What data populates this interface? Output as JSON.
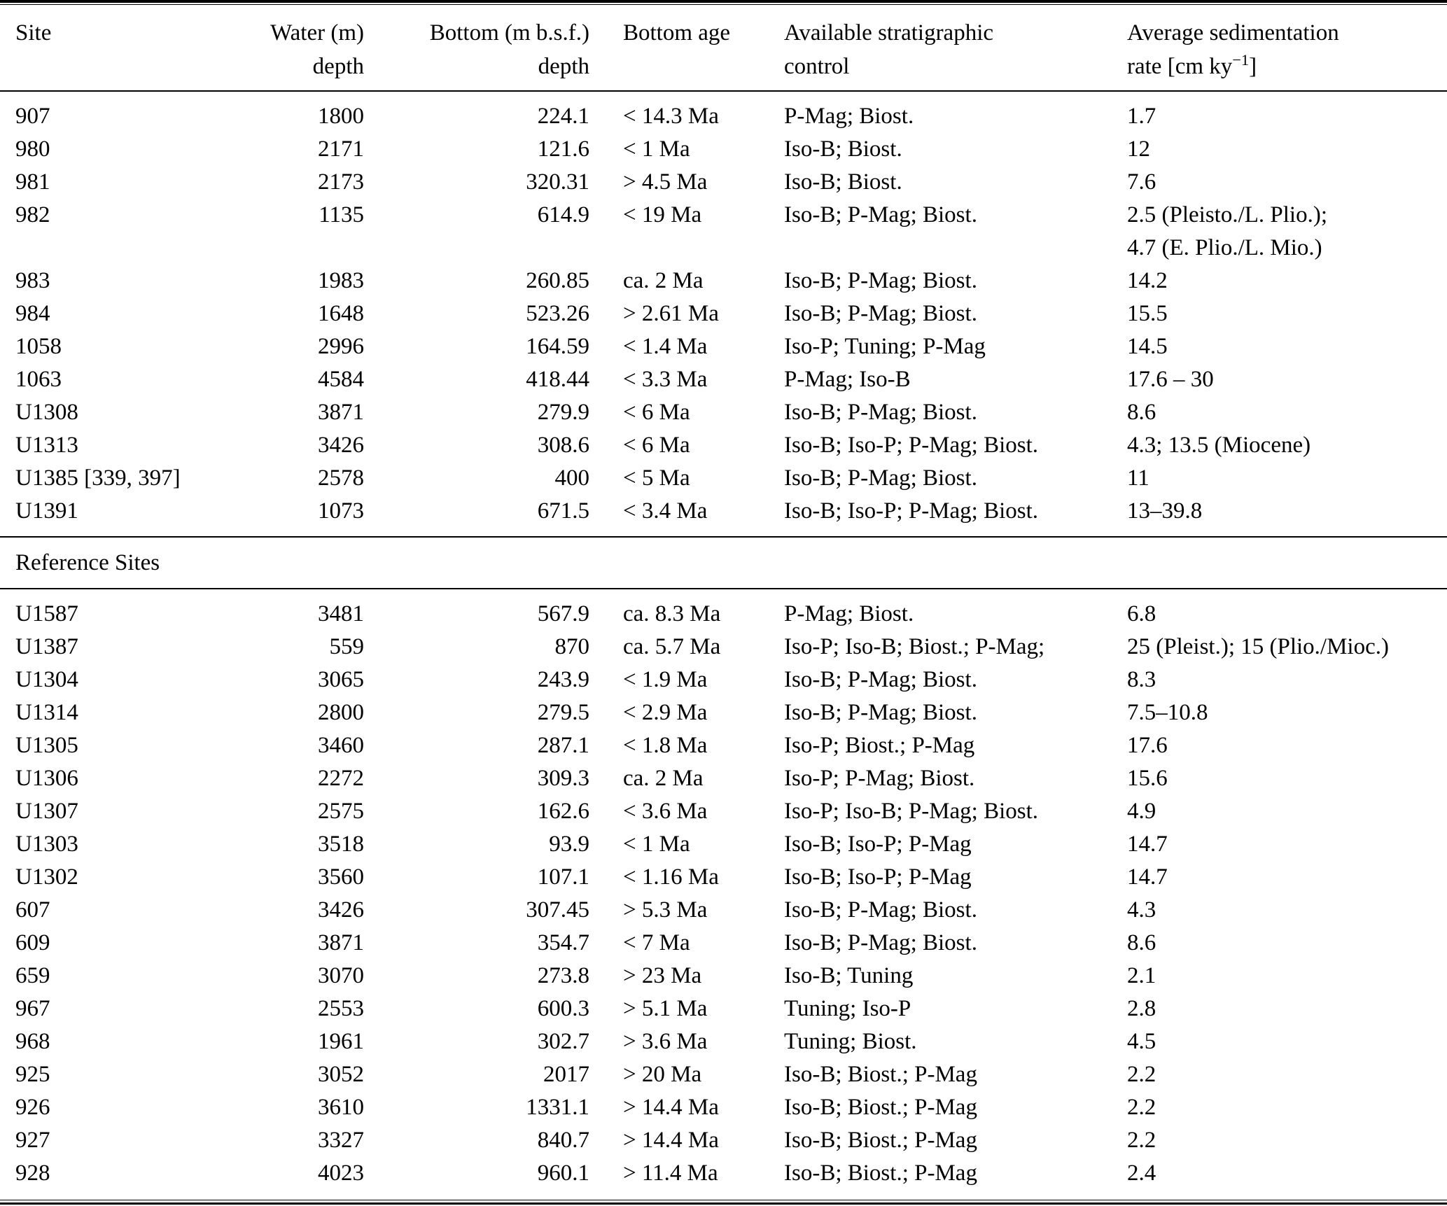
{
  "table": {
    "header": {
      "site": "Site",
      "water_line1": "Water (m)",
      "water_line2": "depth",
      "bottom_line1": "Bottom (m b.s.f.)",
      "bottom_line2": "depth",
      "age": "Bottom age",
      "strat_line1": "Available stratigraphic",
      "strat_line2": "control",
      "rate_line1": "Average sedimentation",
      "rate_line2_prefix": "rate [cm ky",
      "rate_line2_sup": "−1",
      "rate_line2_suffix": "]"
    },
    "section_label": "Reference Sites",
    "main_rows": [
      {
        "site": "907",
        "water_depth": "1800",
        "bottom_depth": "224.1",
        "bottom_age": "< 14.3 Ma",
        "strat_control": "P-Mag; Biost.",
        "sed_rate": "1.7"
      },
      {
        "site": "980",
        "water_depth": "2171",
        "bottom_depth": "121.6",
        "bottom_age": "< 1 Ma",
        "strat_control": "Iso-B; Biost.",
        "sed_rate": "12"
      },
      {
        "site": "981",
        "water_depth": "2173",
        "bottom_depth": "320.31",
        "bottom_age": "> 4.5 Ma",
        "strat_control": "Iso-B; Biost.",
        "sed_rate": "7.6"
      },
      {
        "site": "982",
        "water_depth": "1135",
        "bottom_depth": "614.9",
        "bottom_age": "< 19 Ma",
        "strat_control": "Iso-B; P-Mag; Biost.",
        "sed_rate": "2.5 (Pleisto./L. Plio.);\n4.7 (E. Plio./L. Mio.)"
      },
      {
        "site": "983",
        "water_depth": "1983",
        "bottom_depth": "260.85",
        "bottom_age": "ca. 2 Ma",
        "strat_control": "Iso-B; P-Mag; Biost.",
        "sed_rate": "14.2"
      },
      {
        "site": "984",
        "water_depth": "1648",
        "bottom_depth": "523.26",
        "bottom_age": "> 2.61 Ma",
        "strat_control": "Iso-B; P-Mag; Biost.",
        "sed_rate": "15.5"
      },
      {
        "site": "1058",
        "water_depth": "2996",
        "bottom_depth": "164.59",
        "bottom_age": "< 1.4 Ma",
        "strat_control": "Iso-P; Tuning; P-Mag",
        "sed_rate": "14.5"
      },
      {
        "site": "1063",
        "water_depth": "4584",
        "bottom_depth": "418.44",
        "bottom_age": "< 3.3 Ma",
        "strat_control": "P-Mag; Iso-B",
        "sed_rate": "17.6 – 30"
      },
      {
        "site": "U1308",
        "water_depth": "3871",
        "bottom_depth": "279.9",
        "bottom_age": "< 6 Ma",
        "strat_control": "Iso-B; P-Mag; Biost.",
        "sed_rate": "8.6"
      },
      {
        "site": "U1313",
        "water_depth": "3426",
        "bottom_depth": "308.6",
        "bottom_age": "< 6 Ma",
        "strat_control": "Iso-B; Iso-P; P-Mag; Biost.",
        "sed_rate": "4.3; 13.5 (Miocene)"
      },
      {
        "site": "U1385 [339, 397]",
        "water_depth": "2578",
        "bottom_depth": "400",
        "bottom_age": "< 5 Ma",
        "strat_control": "Iso-B; P-Mag; Biost.",
        "sed_rate": "11"
      },
      {
        "site": "U1391",
        "water_depth": "1073",
        "bottom_depth": "671.5",
        "bottom_age": "< 3.4 Ma",
        "strat_control": "Iso-B; Iso-P; P-Mag; Biost.",
        "sed_rate": "13–39.8"
      }
    ],
    "reference_rows": [
      {
        "site": "U1587",
        "water_depth": "3481",
        "bottom_depth": "567.9",
        "bottom_age": "ca. 8.3 Ma",
        "strat_control": "P-Mag; Biost.",
        "sed_rate": "6.8"
      },
      {
        "site": "U1387",
        "water_depth": "559",
        "bottom_depth": "870",
        "bottom_age": "ca. 5.7 Ma",
        "strat_control": "Iso-P; Iso-B; Biost.; P-Mag;",
        "sed_rate": "25 (Pleist.); 15 (Plio./Mioc.)"
      },
      {
        "site": "U1304",
        "water_depth": "3065",
        "bottom_depth": "243.9",
        "bottom_age": "< 1.9 Ma",
        "strat_control": "Iso-B; P-Mag; Biost.",
        "sed_rate": "8.3"
      },
      {
        "site": "U1314",
        "water_depth": "2800",
        "bottom_depth": "279.5",
        "bottom_age": "< 2.9 Ma",
        "strat_control": "Iso-B; P-Mag; Biost.",
        "sed_rate": "7.5–10.8"
      },
      {
        "site": "U1305",
        "water_depth": "3460",
        "bottom_depth": "287.1",
        "bottom_age": "< 1.8 Ma",
        "strat_control": "Iso-P; Biost.; P-Mag",
        "sed_rate": "17.6"
      },
      {
        "site": "U1306",
        "water_depth": "2272",
        "bottom_depth": "309.3",
        "bottom_age": "ca. 2 Ma",
        "strat_control": "Iso-P; P-Mag; Biost.",
        "sed_rate": "15.6"
      },
      {
        "site": "U1307",
        "water_depth": "2575",
        "bottom_depth": "162.6",
        "bottom_age": "< 3.6 Ma",
        "strat_control": "Iso-P; Iso-B; P-Mag; Biost.",
        "sed_rate": "4.9"
      },
      {
        "site": "U1303",
        "water_depth": "3518",
        "bottom_depth": "93.9",
        "bottom_age": "< 1 Ma",
        "strat_control": "Iso-B; Iso-P; P-Mag",
        "sed_rate": "14.7"
      },
      {
        "site": "U1302",
        "water_depth": "3560",
        "bottom_depth": "107.1",
        "bottom_age": "< 1.16 Ma",
        "strat_control": "Iso-B; Iso-P; P-Mag",
        "sed_rate": "14.7"
      },
      {
        "site": "607",
        "water_depth": "3426",
        "bottom_depth": "307.45",
        "bottom_age": "> 5.3 Ma",
        "strat_control": "Iso-B; P-Mag; Biost.",
        "sed_rate": "4.3"
      },
      {
        "site": "609",
        "water_depth": "3871",
        "bottom_depth": "354.7",
        "bottom_age": "< 7 Ma",
        "strat_control": "Iso-B; P-Mag; Biost.",
        "sed_rate": "8.6"
      },
      {
        "site": "659",
        "water_depth": "3070",
        "bottom_depth": "273.8",
        "bottom_age": "> 23 Ma",
        "strat_control": "Iso-B; Tuning",
        "sed_rate": "2.1"
      },
      {
        "site": "967",
        "water_depth": "2553",
        "bottom_depth": "600.3",
        "bottom_age": "> 5.1 Ma",
        "strat_control": "Tuning; Iso-P",
        "sed_rate": "2.8"
      },
      {
        "site": "968",
        "water_depth": "1961",
        "bottom_depth": "302.7",
        "bottom_age": "> 3.6 Ma",
        "strat_control": "Tuning; Biost.",
        "sed_rate": "4.5"
      },
      {
        "site": "925",
        "water_depth": "3052",
        "bottom_depth": "2017",
        "bottom_age": "> 20 Ma",
        "strat_control": "Iso-B; Biost.; P-Mag",
        "sed_rate": "2.2"
      },
      {
        "site": "926",
        "water_depth": "3610",
        "bottom_depth": "1331.1",
        "bottom_age": "> 14.4 Ma",
        "strat_control": "Iso-B; Biost.; P-Mag",
        "sed_rate": "2.2"
      },
      {
        "site": "927",
        "water_depth": "3327",
        "bottom_depth": "840.7",
        "bottom_age": "> 14.4 Ma",
        "strat_control": "Iso-B; Biost.; P-Mag",
        "sed_rate": "2.2"
      },
      {
        "site": "928",
        "water_depth": "4023",
        "bottom_depth": "960.1",
        "bottom_age": "> 11.4 Ma",
        "strat_control": "Iso-B; Biost.; P-Mag",
        "sed_rate": "2.4"
      }
    ]
  }
}
